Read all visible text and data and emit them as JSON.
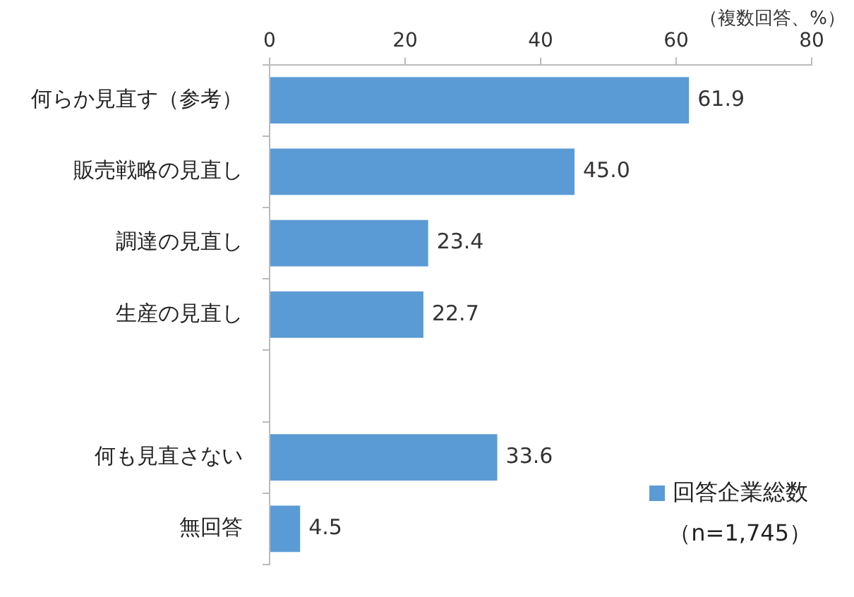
{
  "chart_data": {
    "type": "bar",
    "orientation": "horizontal",
    "categories": [
      "何らか見直す（参考）",
      "販売戦略の見直し",
      "調達の見直し",
      "生産の見直し",
      null,
      "何も見直さない",
      "無回答"
    ],
    "series": [
      {
        "name": "回答企業総数",
        "color": "#5b9bd5",
        "values": [
          61.9,
          45.0,
          23.4,
          22.7,
          null,
          33.6,
          4.5
        ]
      }
    ],
    "value_labels": [
      "61.9",
      "45.0",
      "23.4",
      "22.7",
      null,
      "33.6",
      "4.5"
    ],
    "xlim": [
      0,
      80
    ],
    "xticks": [
      0,
      20,
      40,
      60,
      80
    ],
    "grid": false,
    "legend": "bottom right",
    "annotations": [
      "（複数回答、%）",
      "（n=1,745）"
    ]
  }
}
